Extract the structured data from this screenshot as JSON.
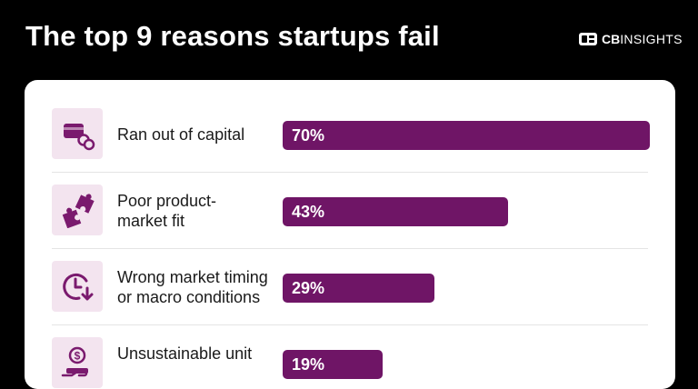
{
  "header": {
    "title": "The top 9 reasons startups fail",
    "brand_bold": "CB",
    "brand_rest": "INSIGHTS"
  },
  "colors": {
    "background": "#000000",
    "bar": "#6f1566",
    "icon_bg": "#f3e4ef",
    "icon": "#7a1a6e"
  },
  "chart_data": {
    "type": "bar",
    "orientation": "horizontal",
    "title": "The top 9 reasons startups fail",
    "unit": "%",
    "xlim": [
      0,
      70
    ],
    "categories": [
      "Ran out of capital",
      "Poor product-market fit",
      "Wrong market timing or macro conditions",
      "Unsustainable unit"
    ],
    "values": [
      70,
      43,
      29,
      19
    ],
    "value_labels": [
      "70%",
      "43%",
      "29%",
      "19%"
    ],
    "label_lines": [
      [
        "Ran out of capital"
      ],
      [
        "Poor product-",
        "market fit"
      ],
      [
        "Wrong market timing",
        "or macro conditions"
      ],
      [
        "Unsustainable unit",
        ""
      ]
    ],
    "icons": [
      "wallet-coins-icon",
      "puzzle-pieces-icon",
      "clock-arrow-down-icon",
      "money-hand-icon"
    ]
  }
}
